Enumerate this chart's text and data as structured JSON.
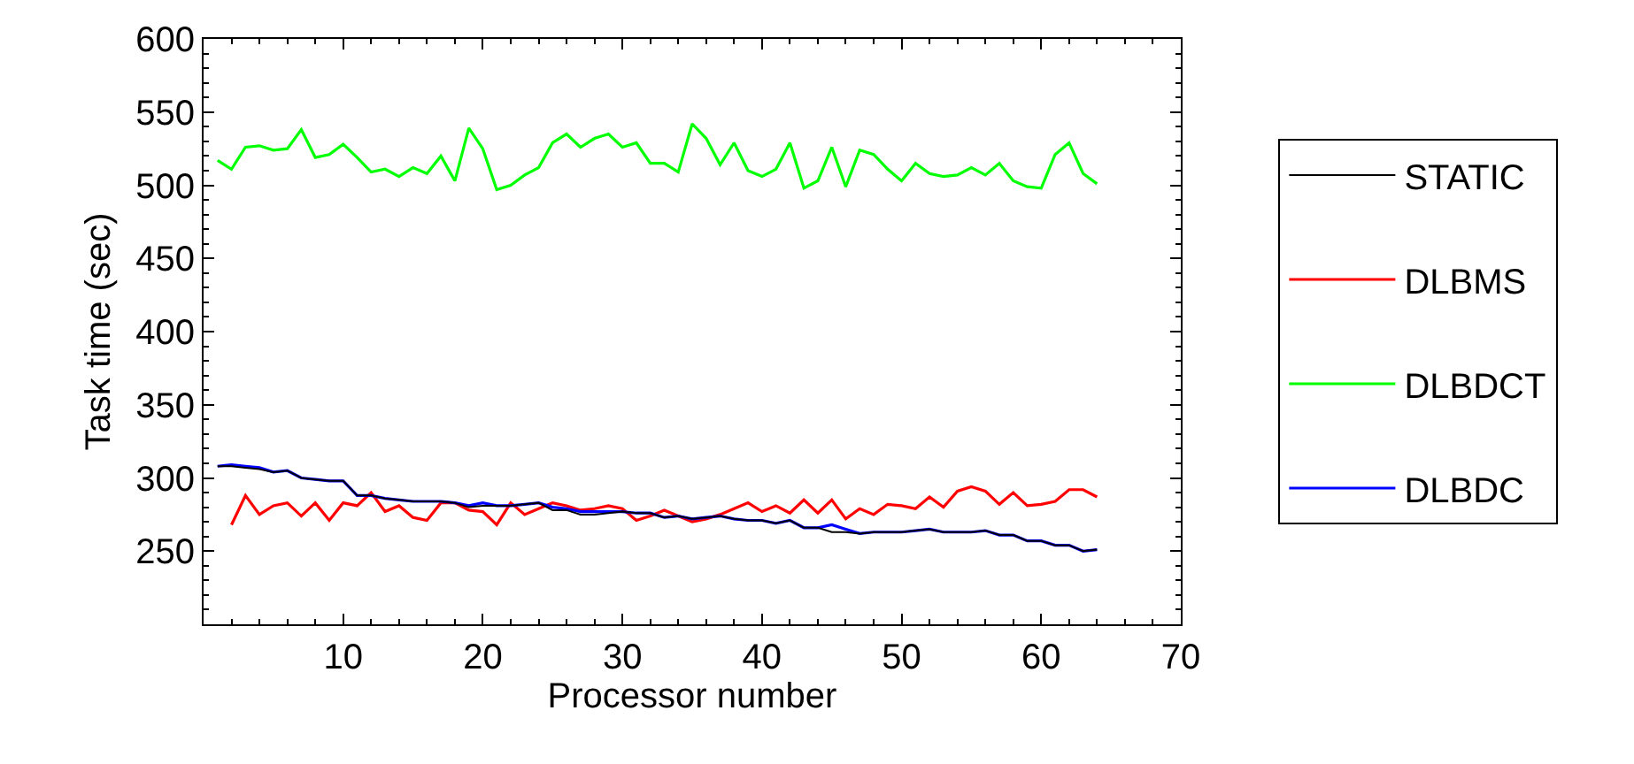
{
  "chart_data": {
    "type": "line",
    "xlabel": "Processor number",
    "ylabel": "Task time (sec)",
    "xlim": [
      0,
      70
    ],
    "xticks": [
      10,
      20,
      30,
      40,
      50,
      60,
      70
    ],
    "ylim": [
      200,
      600
    ],
    "yticks": [
      250,
      300,
      350,
      400,
      450,
      500,
      550,
      600
    ],
    "grid": false,
    "legend": "right",
    "line_style": "solid",
    "marker": "none",
    "series": [
      {
        "name": "STATIC",
        "color": "#000000",
        "x": [
          1,
          2,
          3,
          4,
          5,
          6,
          7,
          8,
          9,
          10,
          11,
          12,
          13,
          14,
          15,
          16,
          17,
          18,
          19,
          20,
          21,
          22,
          23,
          24,
          25,
          26,
          27,
          28,
          29,
          30,
          31,
          32,
          33,
          34,
          35,
          36,
          37,
          38,
          39,
          40,
          41,
          42,
          43,
          44,
          45,
          46,
          47,
          48,
          49,
          50,
          51,
          52,
          53,
          54,
          55,
          56,
          57,
          58,
          59,
          60,
          61,
          62,
          63,
          64
        ],
        "values": [
          308,
          308,
          307,
          306,
          304,
          305,
          300,
          299,
          298,
          298,
          288,
          288,
          286,
          285,
          284,
          284,
          284,
          283,
          280,
          281,
          281,
          281,
          282,
          283,
          278,
          278,
          275,
          275,
          276,
          277,
          276,
          276,
          273,
          274,
          272,
          273,
          274,
          272,
          271,
          271,
          269,
          271,
          266,
          266,
          263,
          263,
          262,
          263,
          263,
          263,
          264,
          265,
          263,
          263,
          263,
          264,
          261,
          261,
          257,
          257,
          254,
          254,
          250,
          251
        ]
      },
      {
        "name": "DLBMS",
        "color": "#ff0000",
        "x": [
          2,
          3,
          4,
          5,
          6,
          7,
          8,
          9,
          10,
          11,
          12,
          13,
          14,
          15,
          16,
          17,
          18,
          19,
          20,
          21,
          22,
          23,
          24,
          25,
          26,
          27,
          28,
          29,
          30,
          31,
          32,
          33,
          34,
          35,
          36,
          37,
          38,
          39,
          40,
          41,
          42,
          43,
          44,
          45,
          46,
          47,
          48,
          49,
          50,
          51,
          52,
          53,
          54,
          55,
          56,
          57,
          58,
          59,
          60,
          61,
          62,
          63,
          64
        ],
        "values": [
          268,
          288,
          275,
          281,
          283,
          274,
          283,
          271,
          283,
          281,
          290,
          277,
          281,
          273,
          271,
          283,
          283,
          278,
          277,
          268,
          283,
          275,
          279,
          283,
          281,
          278,
          279,
          281,
          279,
          271,
          274,
          278,
          274,
          270,
          272,
          275,
          279,
          283,
          277,
          281,
          276,
          285,
          276,
          285,
          272,
          279,
          275,
          282,
          281,
          279,
          287,
          280,
          291,
          294,
          291,
          282,
          290,
          281,
          282,
          284,
          292,
          292,
          287
        ]
      },
      {
        "name": "DLBDCT",
        "color": "#00ff00",
        "x": [
          1,
          2,
          3,
          4,
          5,
          6,
          7,
          8,
          9,
          10,
          11,
          12,
          13,
          14,
          15,
          16,
          17,
          18,
          19,
          20,
          21,
          22,
          23,
          24,
          25,
          26,
          27,
          28,
          29,
          30,
          31,
          32,
          33,
          34,
          35,
          36,
          37,
          38,
          39,
          40,
          41,
          42,
          43,
          44,
          45,
          46,
          47,
          48,
          49,
          50,
          51,
          52,
          53,
          54,
          55,
          56,
          57,
          58,
          59,
          60,
          61,
          62,
          63,
          64
        ],
        "values": [
          517,
          511,
          526,
          527,
          524,
          525,
          538,
          519,
          521,
          528,
          519,
          509,
          511,
          506,
          512,
          508,
          520,
          503,
          539,
          525,
          497,
          500,
          507,
          512,
          529,
          535,
          526,
          532,
          535,
          526,
          529,
          515,
          515,
          509,
          542,
          532,
          514,
          529,
          510,
          506,
          511,
          529,
          498,
          503,
          526,
          499,
          524,
          521,
          511,
          503,
          515,
          508,
          506,
          507,
          512,
          507,
          515,
          503,
          499,
          498,
          521,
          529,
          508,
          501
        ]
      },
      {
        "name": "DLBDC",
        "color": "#0000ff",
        "x": [
          1,
          2,
          3,
          4,
          5,
          6,
          7,
          8,
          9,
          10,
          11,
          12,
          13,
          14,
          15,
          16,
          17,
          18,
          19,
          20,
          21,
          22,
          23,
          24,
          25,
          26,
          27,
          28,
          29,
          30,
          31,
          32,
          33,
          34,
          35,
          36,
          37,
          38,
          39,
          40,
          41,
          42,
          43,
          44,
          45,
          46,
          47,
          48,
          49,
          50,
          51,
          52,
          53,
          54,
          55,
          56,
          57,
          58,
          59,
          60,
          61,
          62,
          63,
          64
        ],
        "values": [
          308,
          309,
          308,
          307,
          304,
          305,
          300,
          299,
          298,
          298,
          288,
          288,
          286,
          285,
          284,
          284,
          284,
          283,
          281,
          283,
          281,
          281,
          282,
          283,
          280,
          279,
          277,
          277,
          277,
          277,
          276,
          276,
          273,
          274,
          272,
          273,
          274,
          272,
          271,
          271,
          269,
          271,
          266,
          266,
          268,
          265,
          262,
          263,
          263,
          263,
          264,
          265,
          263,
          263,
          263,
          264,
          261,
          261,
          257,
          257,
          254,
          254,
          250,
          251
        ]
      }
    ]
  }
}
